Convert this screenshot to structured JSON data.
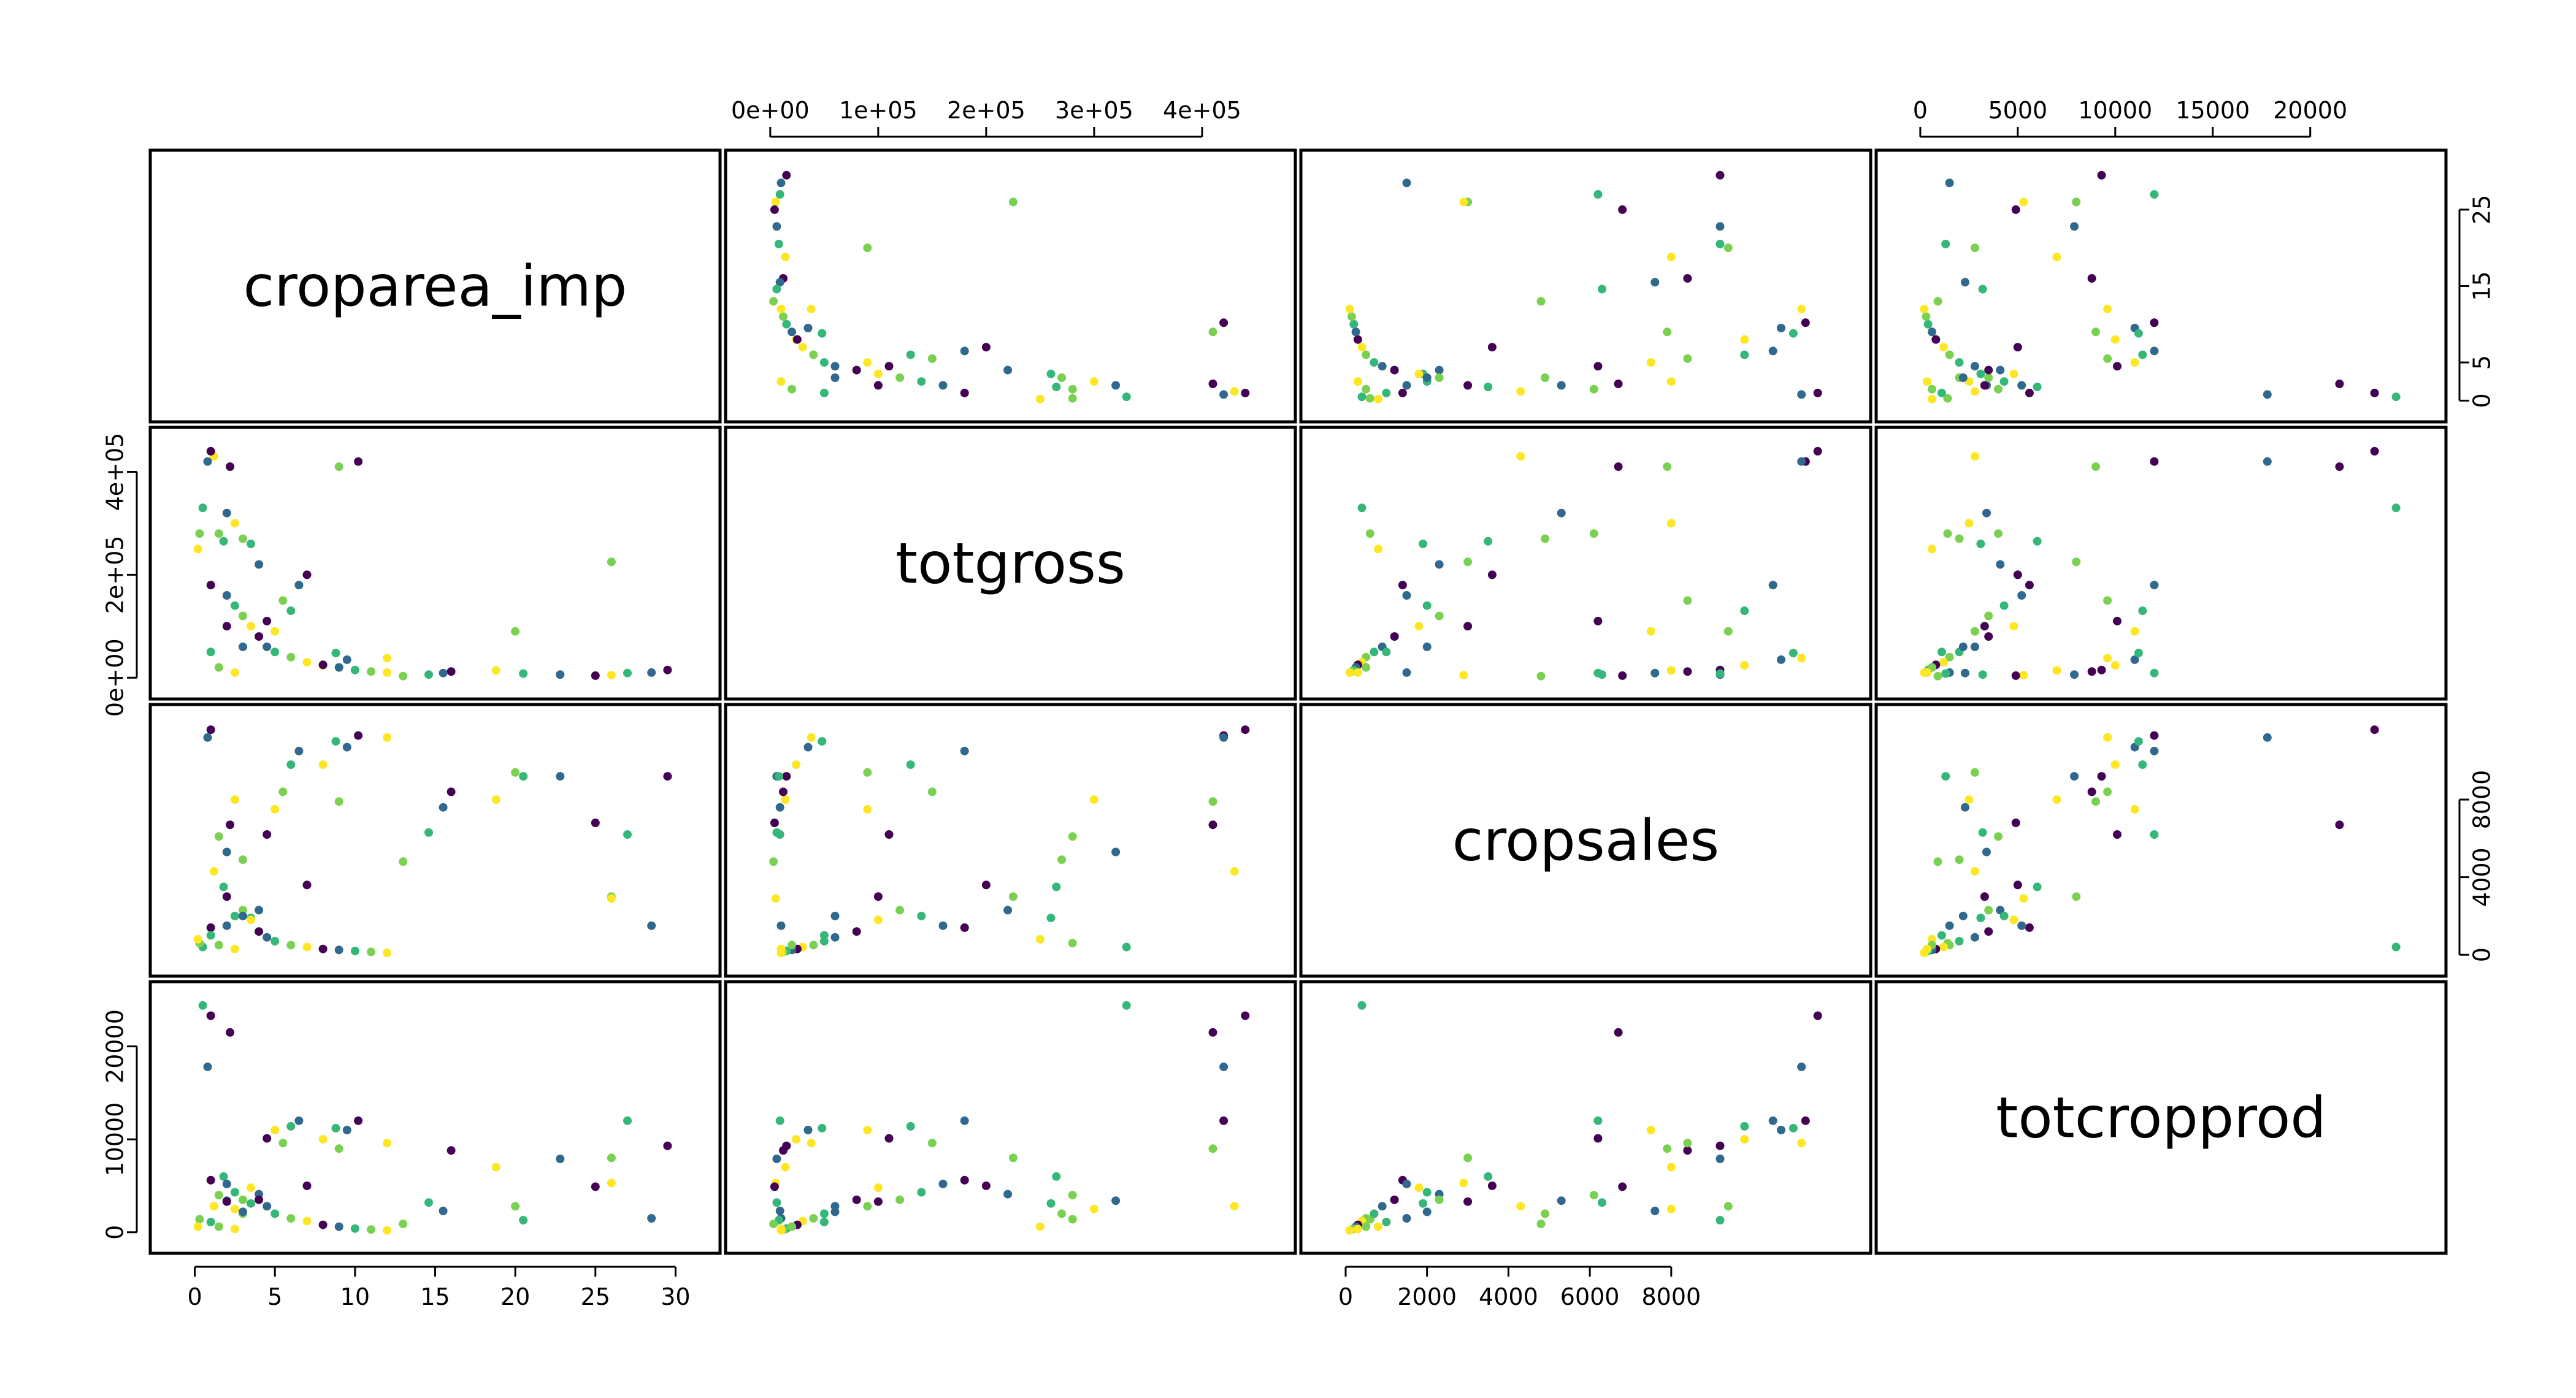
{
  "chart_data": {
    "type": "scatter",
    "title": "",
    "variables": [
      "croparea_imp",
      "totgross",
      "cropsales",
      "totcropprod"
    ],
    "axes": {
      "croparea_imp": {
        "range": [
          -1,
          31
        ],
        "ticks": [
          0,
          5,
          10,
          15,
          20,
          25,
          30
        ],
        "tick_labels": [
          "0",
          "5",
          "10",
          "15",
          "20",
          "25",
          "30"
        ]
      },
      "totgross": {
        "range": [
          -15000,
          460000
        ],
        "ticks": [
          0,
          100000,
          200000,
          300000,
          400000
        ],
        "tick_labels": [
          "0e+00",
          "1e+05",
          "2e+05",
          "3e+05",
          "4e+05"
        ]
      },
      "cropsales": {
        "range": [
          -400,
          12200
        ],
        "ticks": [
          0,
          2000,
          4000,
          6000,
          8000
        ],
        "tick_labels": [
          "0",
          "2000",
          "4000",
          "6000",
          "8000"
        ]
      },
      "totcropprod": {
        "range": [
          -800,
          25500
        ],
        "ticks": [
          0,
          5000,
          10000,
          15000,
          20000
        ],
        "tick_labels": [
          "0",
          "5000",
          "10000",
          "15000",
          "20000"
        ]
      }
    },
    "axis_labels_right_of_row": {
      "croparea_imp": [
        "0",
        "5",
        "15",
        "25"
      ],
      "cropsales": [
        "0",
        "4000",
        "8000"
      ]
    },
    "axis_labels_left_of_row": {
      "totgross": [
        "0e+00",
        "2e+05",
        "4e+05"
      ],
      "totcropprod": [
        "0",
        "10000",
        "20000"
      ]
    },
    "axis_labels_below_col": {
      "croparea_imp": [
        "0",
        "5",
        "10",
        "15",
        "20",
        "25",
        "30"
      ],
      "cropsales": [
        "0",
        "2000",
        "4000",
        "6000",
        "8000"
      ]
    },
    "axis_labels_above_col": {
      "totgross": [
        "0e+00",
        "1e+05",
        "2e+05",
        "3e+05",
        "4e+05"
      ],
      "totcropprod": [
        "0",
        "5000",
        "10000",
        "15000",
        "20000"
      ]
    },
    "color_groups": [
      "#440154",
      "#31688e",
      "#35b779",
      "#7ad151",
      "#fde725"
    ],
    "observations": [
      [
        29.5,
        15000,
        9200,
        9300
      ],
      [
        28.5,
        10000,
        1500,
        1500
      ],
      [
        27.0,
        9000,
        6200,
        12000
      ],
      [
        26.0,
        225000,
        3000,
        8000
      ],
      [
        26.0,
        5000,
        2900,
        5300
      ],
      [
        25.0,
        4000,
        6800,
        4900
      ],
      [
        22.8,
        6000,
        9200,
        7900
      ],
      [
        20.5,
        8000,
        9200,
        1300
      ],
      [
        20.0,
        90000,
        9400,
        2800
      ],
      [
        18.8,
        14000,
        8000,
        7000
      ],
      [
        16.0,
        12000,
        8400,
        8800
      ],
      [
        15.5,
        9000,
        7600,
        2300
      ],
      [
        14.6,
        6000,
        6300,
        3200
      ],
      [
        13.0,
        3000,
        4800,
        900
      ],
      [
        12.0,
        38000,
        11200,
        9600
      ],
      [
        10.2,
        420000,
        11300,
        12000
      ],
      [
        9.5,
        35000,
        10700,
        11000
      ],
      [
        8.8,
        48000,
        11000,
        11200
      ],
      [
        9.0,
        410000,
        7900,
        9000
      ],
      [
        8.0,
        24000,
        9800,
        10000
      ],
      [
        7.0,
        200000,
        3600,
        5000
      ],
      [
        6.5,
        180000,
        10500,
        12000
      ],
      [
        6.0,
        130000,
        9800,
        11400
      ],
      [
        5.5,
        150000,
        8400,
        9600
      ],
      [
        5.0,
        90000,
        7500,
        11000
      ],
      [
        4.5,
        110000,
        6200,
        10100
      ],
      [
        4.0,
        220000,
        2300,
        4100
      ],
      [
        3.5,
        260000,
        1900,
        3100
      ],
      [
        3.0,
        270000,
        4900,
        2000
      ],
      [
        2.5,
        300000,
        8000,
        2500
      ],
      [
        2.2,
        410000,
        6700,
        21500
      ],
      [
        2.0,
        320000,
        5300,
        3400
      ],
      [
        1.8,
        265000,
        3500,
        6000
      ],
      [
        1.5,
        280000,
        6100,
        4000
      ],
      [
        1.2,
        430000,
        4300,
        2800
      ],
      [
        1.0,
        440000,
        11600,
        23300
      ],
      [
        0.8,
        420000,
        11200,
        17800
      ],
      [
        0.5,
        330000,
        400,
        24400
      ],
      [
        0.3,
        280000,
        600,
        1400
      ],
      [
        0.2,
        250000,
        800,
        600
      ],
      [
        1.0,
        180000,
        1400,
        5600
      ],
      [
        2.0,
        160000,
        1500,
        5200
      ],
      [
        2.5,
        140000,
        2000,
        4300
      ],
      [
        3.0,
        120000,
        2300,
        3500
      ],
      [
        3.5,
        100000,
        1800,
        4800
      ],
      [
        4.0,
        80000,
        1200,
        3500
      ],
      [
        4.5,
        60000,
        900,
        2800
      ],
      [
        5.0,
        50000,
        700,
        2000
      ],
      [
        6.0,
        40000,
        500,
        1500
      ],
      [
        7.0,
        30000,
        400,
        1200
      ],
      [
        8.0,
        25000,
        300,
        800
      ],
      [
        9.0,
        20000,
        250,
        600
      ],
      [
        10.0,
        15000,
        200,
        400
      ],
      [
        11.0,
        12000,
        150,
        300
      ],
      [
        12.0,
        10000,
        100,
        200
      ],
      [
        2.0,
        100000,
        3000,
        3300
      ],
      [
        3.0,
        60000,
        2000,
        2200
      ],
      [
        1.0,
        50000,
        1000,
        1100
      ],
      [
        1.5,
        20000,
        500,
        600
      ],
      [
        2.5,
        10000,
        300,
        350
      ]
    ]
  }
}
